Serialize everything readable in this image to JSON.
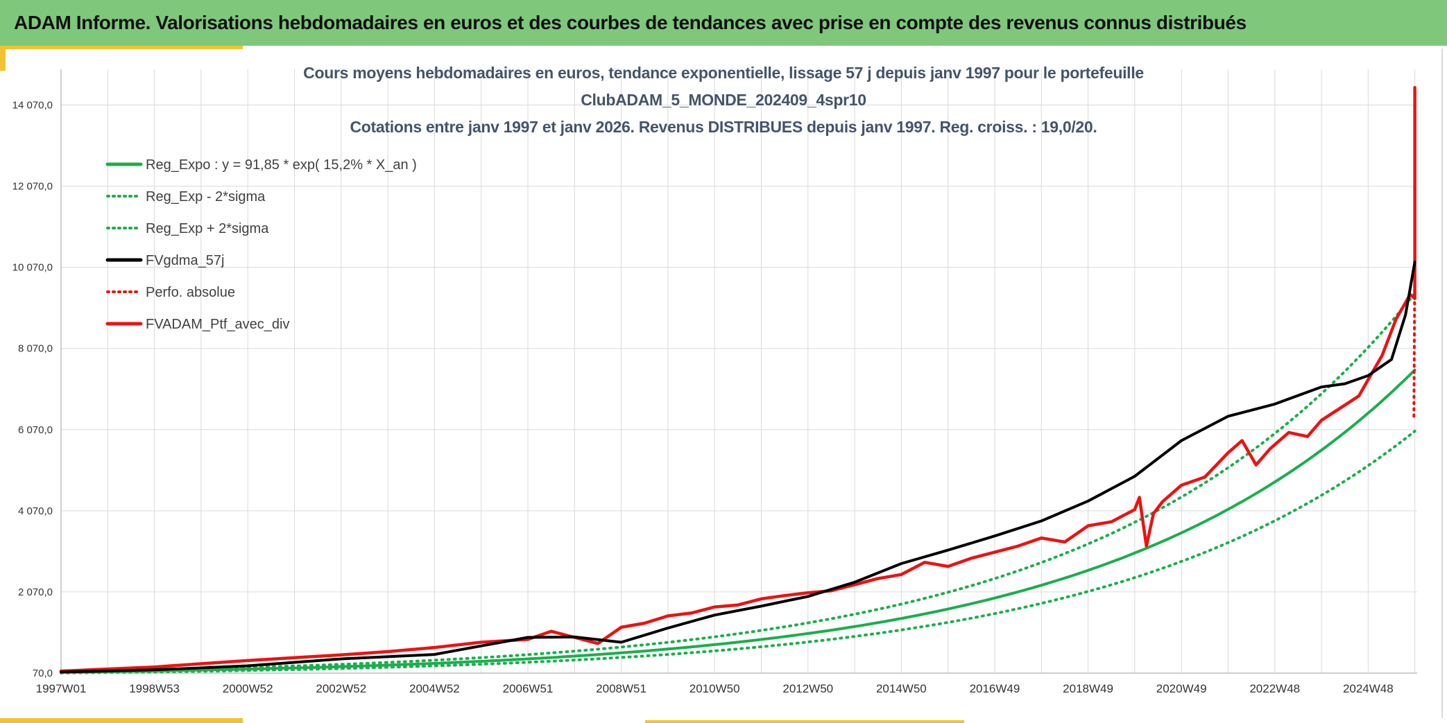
{
  "header": {
    "title": "ADAM Informe. Valorisations hebdomadaires en euros et des courbes de tendances avec prise en compte des revenus connus distribués"
  },
  "colors": {
    "banner_bg": "#7ec77b",
    "accent_yellow": "#f2c230",
    "trend_green": "#1aaf4c",
    "smoothed_black": "#000000",
    "portfolio_red": "#ee1111",
    "title_text": "#44546a",
    "grid": "#d9d9d9"
  },
  "chart_data": {
    "type": "line",
    "title_lines": [
      "Cours moyens hebdomadaires en euros, tendance exponentielle, lissage 57 j depuis janv 1997 pour le portefeuille",
      "ClubADAM_5_MONDE_202409_4spr10",
      "Cotations entre janv 1997 et janv 2026. Revenus DISTRIBUES depuis janv 1997. Reg. croiss. : 19,0/20."
    ],
    "xlabel": "",
    "ylabel": "",
    "x_range": [
      1997.0,
      2026.05
    ],
    "ylim": [
      70,
      14950
    ],
    "y_ticks": [
      70,
      2070,
      4070,
      6070,
      8070,
      10070,
      12070,
      14070
    ],
    "y_tick_labels": [
      "70,0",
      "2 070,0",
      "4 070,0",
      "6 070,0",
      "8 070,0",
      "10 070,0",
      "12 070,0",
      "14 070,0"
    ],
    "x_tick_labels": [
      "1997W01",
      "1998W53",
      "2000W52",
      "2002W52",
      "2004W52",
      "2006W51",
      "2008W51",
      "2010W50",
      "2012W50",
      "2014W50",
      "2016W49",
      "2018W49",
      "2020W49",
      "2022W48",
      "2024W48"
    ],
    "x_tick_values": [
      1997.0,
      1999.0,
      2001.0,
      2003.0,
      2005.0,
      2007.0,
      2009.0,
      2011.0,
      2013.0,
      2015.0,
      2017.0,
      2019.0,
      2021.0,
      2023.0,
      2025.0
    ],
    "legend_position": "top-left",
    "regression": {
      "a": 91.85,
      "rate": 0.152,
      "sigma_factor": 0.8
    },
    "series": [
      {
        "name": "Reg_Expo : y = 91,85 * exp( 15,2% *  X_an )",
        "style": "solid",
        "color": "#1aaf4c",
        "kind": "expo"
      },
      {
        "name": "Reg_Exp - 2*sigma",
        "style": "dotted",
        "color": "#1aaf4c",
        "kind": "expo_low"
      },
      {
        "name": "Reg_Exp + 2*sigma",
        "style": "dotted",
        "color": "#1aaf4c",
        "kind": "expo_high"
      },
      {
        "name": "FVgdma_57j",
        "style": "solid",
        "color": "#000000",
        "kind": "points",
        "x": [
          1997.0,
          1999.0,
          2001.0,
          2003.0,
          2005.0,
          2007.0,
          2008.0,
          2009.0,
          2010.0,
          2011.0,
          2012.0,
          2013.0,
          2014.0,
          2015.0,
          2016.0,
          2017.0,
          2018.0,
          2019.0,
          2020.0,
          2021.0,
          2022.0,
          2023.0,
          2024.0,
          2024.5,
          2025.0,
          2025.5,
          2025.8,
          2026.0
        ],
        "values": [
          95,
          150,
          250,
          420,
          530,
          950,
          960,
          830,
          1180,
          1500,
          1720,
          1960,
          2310,
          2770,
          3100,
          3450,
          3820,
          4310,
          4920,
          5800,
          6400,
          6700,
          7120,
          7200,
          7400,
          7800,
          8900,
          10200
        ]
      },
      {
        "name": "Perfo. absolue",
        "style": "dotted",
        "color": "#ee1111",
        "kind": "points",
        "x": [
          2025.98,
          2026.0,
          2026.0
        ],
        "values": [
          6400,
          10200,
          14500
        ]
      },
      {
        "name": "FVADAM_Ptf_avec_div",
        "style": "solid",
        "color": "#ee1111",
        "kind": "points",
        "x": [
          1997.0,
          1998.0,
          1999.0,
          2000.0,
          2001.0,
          2002.0,
          2003.0,
          2004.0,
          2005.0,
          2006.0,
          2007.0,
          2007.5,
          2008.0,
          2008.5,
          2009.0,
          2009.5,
          2010.0,
          2010.5,
          2011.0,
          2011.5,
          2012.0,
          2012.5,
          2013.0,
          2013.5,
          2014.0,
          2014.5,
          2015.0,
          2015.5,
          2016.0,
          2016.5,
          2017.0,
          2017.5,
          2018.0,
          2018.5,
          2019.0,
          2019.5,
          2020.0,
          2020.1,
          2020.25,
          2020.4,
          2020.6,
          2021.0,
          2021.5,
          2022.0,
          2022.3,
          2022.6,
          2022.9,
          2023.3,
          2023.7,
          2024.0,
          2024.4,
          2024.8,
          2025.0,
          2025.3,
          2025.6,
          2025.9,
          2026.0,
          2026.0
        ],
        "values": [
          120,
          170,
          220,
          300,
          380,
          450,
          520,
          600,
          700,
          830,
          900,
          1100,
          950,
          800,
          1200,
          1300,
          1480,
          1550,
          1700,
          1750,
          1900,
          1980,
          2050,
          2100,
          2250,
          2400,
          2500,
          2800,
          2700,
          2900,
          3050,
          3200,
          3400,
          3300,
          3700,
          3800,
          4100,
          4400,
          3200,
          4000,
          4300,
          4700,
          4900,
          5500,
          5800,
          5200,
          5600,
          6000,
          5900,
          6300,
          6600,
          6900,
          7300,
          7900,
          8800,
          9400,
          9300,
          14500
        ]
      }
    ]
  }
}
